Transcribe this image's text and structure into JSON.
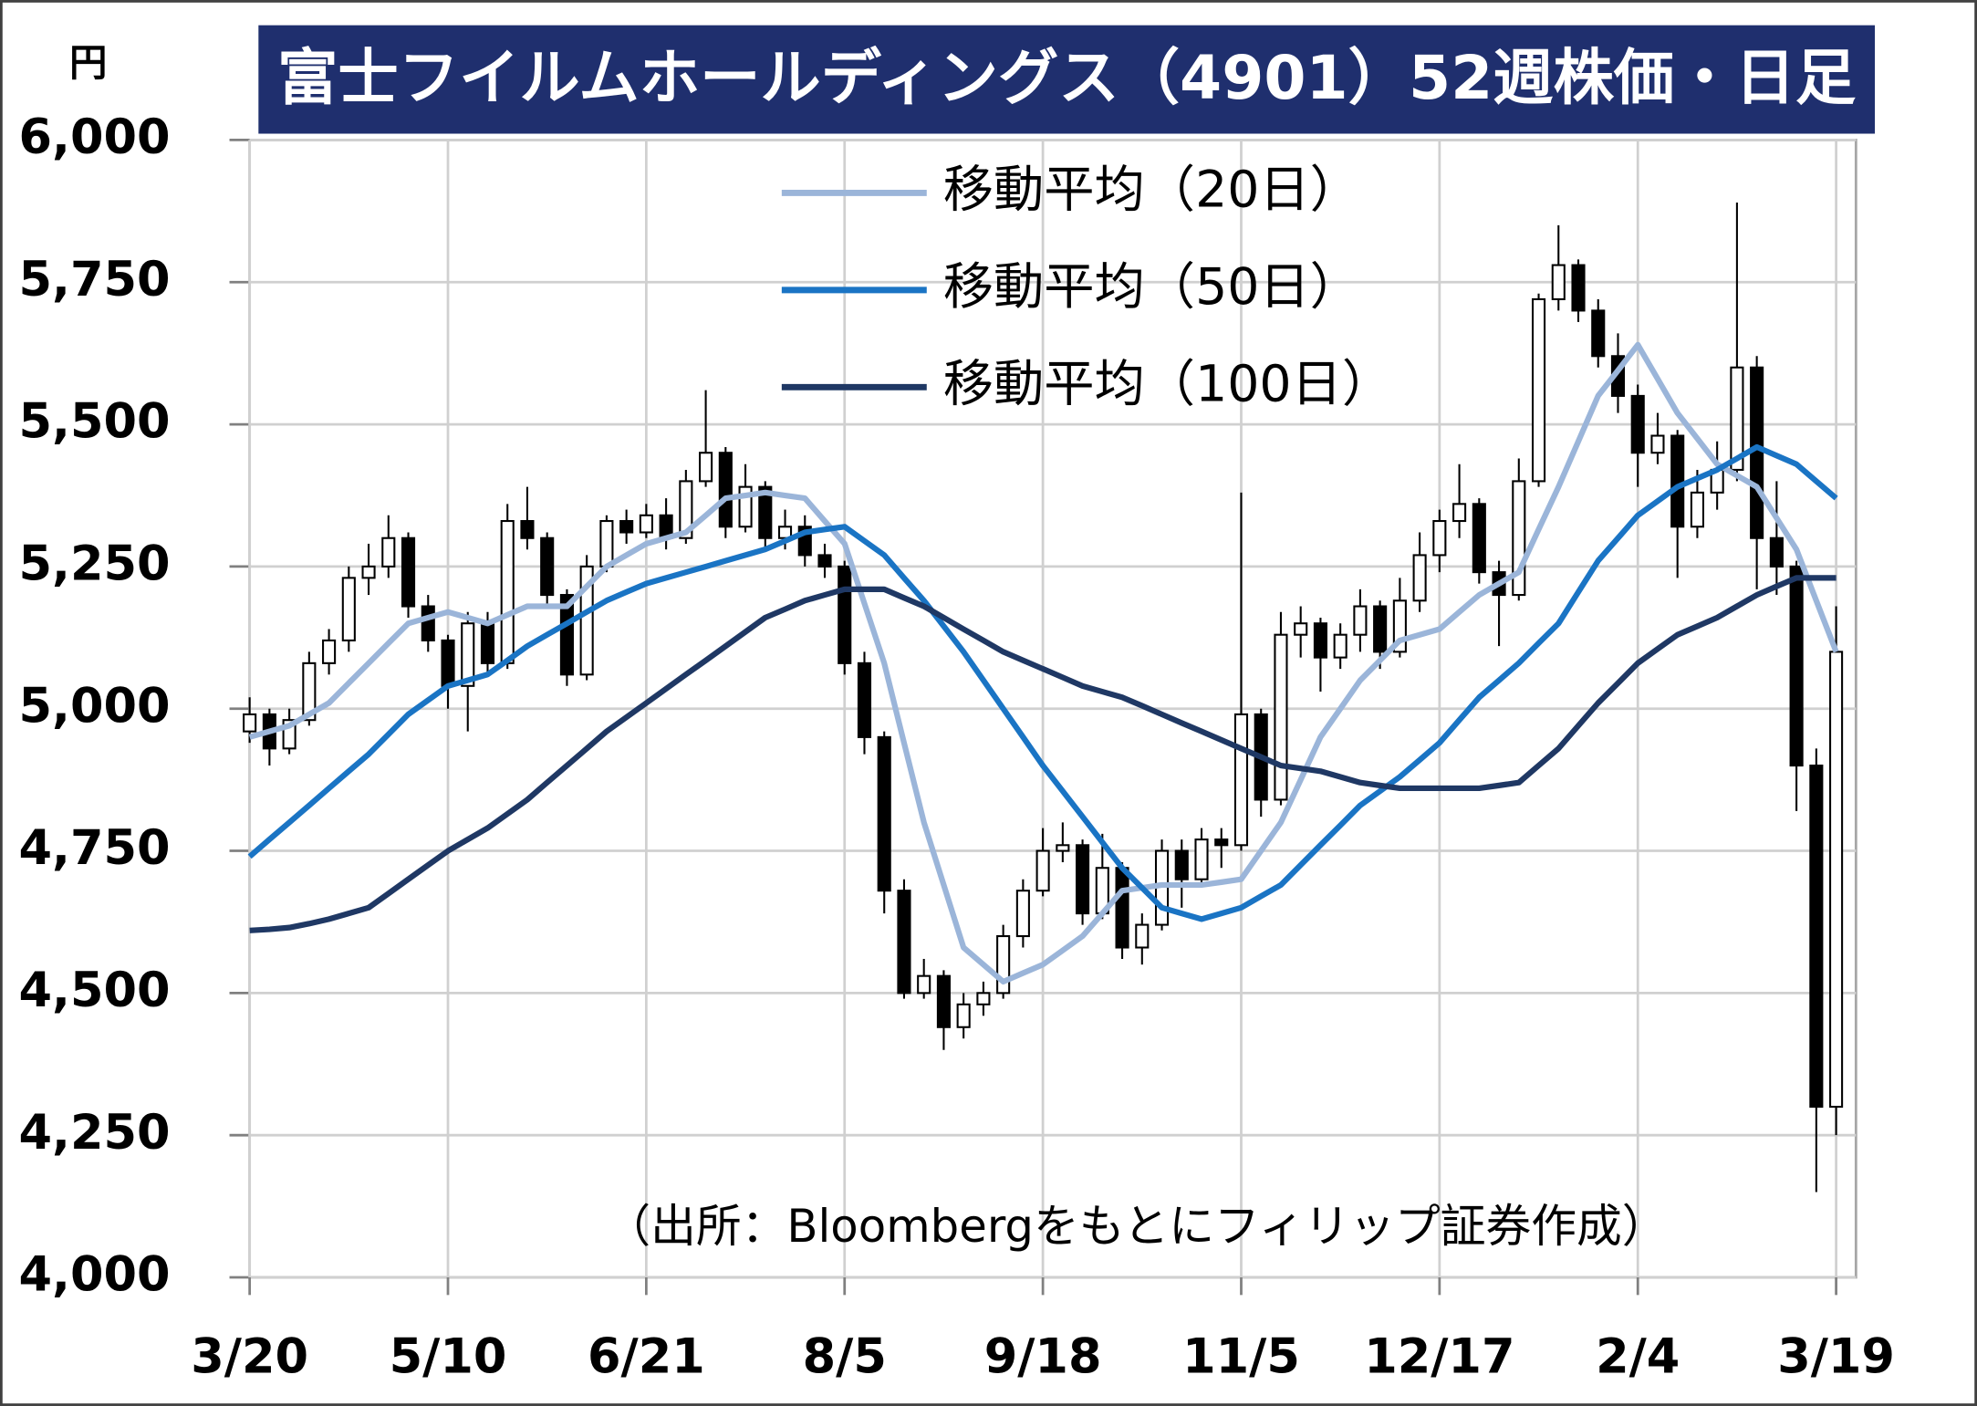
{
  "chart_data": {
    "type": "candlestick",
    "title": "富士フイルムホールディングス（4901）52週株価・日足",
    "y_unit": "円",
    "annotation": "（出所：Bloombergをもとにフィリップ証券作成）",
    "ylim": [
      4000,
      6000
    ],
    "yticks": [
      {
        "value": 4000,
        "label": "4,000"
      },
      {
        "value": 4250,
        "label": "4,250"
      },
      {
        "value": 4500,
        "label": "4,500"
      },
      {
        "value": 4750,
        "label": "4,750"
      },
      {
        "value": 5000,
        "label": "5,000"
      },
      {
        "value": 5250,
        "label": "5,250"
      },
      {
        "value": 5500,
        "label": "5,500"
      },
      {
        "value": 5750,
        "label": "5,750"
      },
      {
        "value": 6000,
        "label": "6,000"
      }
    ],
    "xlim": [
      0,
      81
    ],
    "xticks": [
      {
        "value": 0,
        "label": "3/20"
      },
      {
        "value": 10,
        "label": "5/10"
      },
      {
        "value": 20,
        "label": "6/21"
      },
      {
        "value": 30,
        "label": "8/5"
      },
      {
        "value": 40,
        "label": "9/18"
      },
      {
        "value": 50,
        "label": "11/5"
      },
      {
        "value": 60,
        "label": "12/17"
      },
      {
        "value": 70,
        "label": "2/4"
      },
      {
        "value": 80,
        "label": "3/19"
      }
    ],
    "grid": true,
    "up_color": "#ffffff",
    "down_color": "#000000",
    "ohlc": [
      [
        4960,
        5020,
        4940,
        4990
      ],
      [
        4990,
        5000,
        4900,
        4930
      ],
      [
        4930,
        5000,
        4920,
        4980
      ],
      [
        4980,
        5100,
        4970,
        5080
      ],
      [
        5080,
        5140,
        5060,
        5120
      ],
      [
        5120,
        5250,
        5100,
        5230
      ],
      [
        5230,
        5290,
        5200,
        5250
      ],
      [
        5250,
        5340,
        5230,
        5300
      ],
      [
        5300,
        5310,
        5160,
        5180
      ],
      [
        5180,
        5200,
        5100,
        5120
      ],
      [
        5120,
        5130,
        5000,
        5040
      ],
      [
        5040,
        5170,
        4960,
        5150
      ],
      [
        5150,
        5170,
        5060,
        5080
      ],
      [
        5080,
        5360,
        5070,
        5330
      ],
      [
        5330,
        5390,
        5280,
        5300
      ],
      [
        5300,
        5310,
        5180,
        5200
      ],
      [
        5200,
        5210,
        5040,
        5060
      ],
      [
        5060,
        5270,
        5050,
        5250
      ],
      [
        5250,
        5340,
        5240,
        5330
      ],
      [
        5330,
        5350,
        5290,
        5310
      ],
      [
        5310,
        5360,
        5300,
        5340
      ],
      [
        5340,
        5370,
        5280,
        5300
      ],
      [
        5300,
        5420,
        5290,
        5400
      ],
      [
        5400,
        5560,
        5390,
        5450
      ],
      [
        5450,
        5460,
        5300,
        5320
      ],
      [
        5320,
        5430,
        5310,
        5390
      ],
      [
        5390,
        5400,
        5280,
        5300
      ],
      [
        5300,
        5350,
        5280,
        5320
      ],
      [
        5320,
        5340,
        5250,
        5270
      ],
      [
        5270,
        5290,
        5230,
        5250
      ],
      [
        5250,
        5260,
        5060,
        5080
      ],
      [
        5080,
        5100,
        4920,
        4950
      ],
      [
        4950,
        4960,
        4640,
        4680
      ],
      [
        4680,
        4700,
        4490,
        4500
      ],
      [
        4500,
        4560,
        4490,
        4530
      ],
      [
        4530,
        4540,
        4400,
        4440
      ],
      [
        4440,
        4500,
        4420,
        4480
      ],
      [
        4480,
        4520,
        4460,
        4500
      ],
      [
        4500,
        4620,
        4490,
        4600
      ],
      [
        4600,
        4700,
        4580,
        4680
      ],
      [
        4680,
        4790,
        4670,
        4750
      ],
      [
        4750,
        4800,
        4730,
        4760
      ],
      [
        4760,
        4770,
        4620,
        4640
      ],
      [
        4640,
        4780,
        4630,
        4720
      ],
      [
        4720,
        4730,
        4560,
        4580
      ],
      [
        4580,
        4640,
        4550,
        4620
      ],
      [
        4620,
        4770,
        4610,
        4750
      ],
      [
        4750,
        4770,
        4650,
        4700
      ],
      [
        4700,
        4790,
        4690,
        4770
      ],
      [
        4770,
        4790,
        4720,
        4760
      ],
      [
        4760,
        5380,
        4750,
        4990
      ],
      [
        4990,
        5000,
        4810,
        4840
      ],
      [
        4840,
        5170,
        4830,
        5130
      ],
      [
        5130,
        5180,
        5090,
        5150
      ],
      [
        5150,
        5160,
        5030,
        5090
      ],
      [
        5090,
        5150,
        5070,
        5130
      ],
      [
        5130,
        5210,
        5100,
        5180
      ],
      [
        5180,
        5190,
        5070,
        5100
      ],
      [
        5100,
        5230,
        5090,
        5190
      ],
      [
        5190,
        5310,
        5170,
        5270
      ],
      [
        5270,
        5350,
        5240,
        5330
      ],
      [
        5330,
        5430,
        5300,
        5360
      ],
      [
        5360,
        5370,
        5220,
        5240
      ],
      [
        5240,
        5260,
        5110,
        5200
      ],
      [
        5200,
        5440,
        5190,
        5400
      ],
      [
        5400,
        5730,
        5390,
        5720
      ],
      [
        5720,
        5850,
        5700,
        5780
      ],
      [
        5780,
        5790,
        5680,
        5700
      ],
      [
        5700,
        5720,
        5600,
        5620
      ],
      [
        5620,
        5660,
        5520,
        5550
      ],
      [
        5550,
        5570,
        5390,
        5450
      ],
      [
        5450,
        5520,
        5430,
        5480
      ],
      [
        5480,
        5490,
        5230,
        5320
      ],
      [
        5320,
        5420,
        5300,
        5380
      ],
      [
        5380,
        5470,
        5350,
        5420
      ],
      [
        5420,
        5890,
        5400,
        5600
      ],
      [
        5600,
        5620,
        5210,
        5300
      ],
      [
        5300,
        5400,
        5200,
        5250
      ],
      [
        5250,
        5260,
        4820,
        4900
      ],
      [
        4900,
        4930,
        4150,
        4300
      ],
      [
        4300,
        5180,
        4250,
        5100
      ]
    ],
    "series": [
      {
        "name": "移動平均（20日）",
        "color": "#9bb5d9",
        "values": [
          4950,
          4960,
          4970,
          4990,
          5010,
          5045,
          5080,
          5115,
          5150,
          5160,
          5170,
          5160,
          5150,
          5165,
          5180,
          5180,
          5180,
          5215,
          5250,
          5270,
          5290,
          5300,
          5310,
          5340,
          5370,
          5375,
          5380,
          5375,
          5370,
          5330,
          5290,
          5185,
          5080,
          4940,
          4800,
          4690,
          4580,
          4550,
          4520,
          4535,
          4550,
          4575,
          4600,
          4640,
          4680,
          4685,
          4690,
          4690,
          4690,
          4695,
          4700,
          4750,
          4800,
          4875,
          4950,
          5000,
          5050,
          5085,
          5120,
          5130,
          5140,
          5170,
          5200,
          5220,
          5240,
          5315,
          5390,
          5470,
          5550,
          5595,
          5640,
          5580,
          5520,
          5475,
          5430,
          5410,
          5390,
          5335,
          5280,
          5190,
          5100
        ]
      },
      {
        "name": "移動平均（50日）",
        "color": "#1a74c4",
        "values": [
          4740,
          4770,
          4800,
          4830,
          4860,
          4890,
          4920,
          4955,
          4990,
          5015,
          5040,
          5050,
          5060,
          5085,
          5110,
          5130,
          5150,
          5170,
          5190,
          5205,
          5220,
          5230,
          5240,
          5250,
          5260,
          5270,
          5280,
          5295,
          5310,
          5315,
          5320,
          5295,
          5270,
          5230,
          5190,
          5145,
          5100,
          5050,
          5000,
          4950,
          4900,
          4855,
          4810,
          4765,
          4720,
          4685,
          4650,
          4640,
          4630,
          4640,
          4650,
          4670,
          4690,
          4725,
          4760,
          4795,
          4830,
          4855,
          4880,
          4910,
          4940,
          4980,
          5020,
          5050,
          5080,
          5115,
          5150,
          5205,
          5260,
          5300,
          5340,
          5365,
          5390,
          5405,
          5420,
          5440,
          5460,
          5445,
          5430,
          5400,
          5370
        ]
      },
      {
        "name": "移動平均（100日）",
        "color": "#1f3864",
        "values": [
          4610,
          4612,
          4615,
          4622,
          4630,
          4640,
          4650,
          4675,
          4700,
          4725,
          4750,
          4770,
          4790,
          4815,
          4840,
          4870,
          4900,
          4930,
          4960,
          4985,
          5010,
          5035,
          5060,
          5085,
          5110,
          5135,
          5160,
          5175,
          5190,
          5200,
          5210,
          5210,
          5210,
          5195,
          5180,
          5160,
          5140,
          5120,
          5100,
          5085,
          5070,
          5055,
          5040,
          5030,
          5020,
          5005,
          4990,
          4975,
          4960,
          4945,
          4930,
          4915,
          4900,
          4895,
          4890,
          4880,
          4870,
          4865,
          4860,
          4860,
          4860,
          4860,
          4860,
          4865,
          4870,
          4900,
          4930,
          4970,
          5010,
          5045,
          5080,
          5105,
          5130,
          5145,
          5160,
          5180,
          5200,
          5215,
          5230,
          5230,
          5230
        ]
      }
    ]
  }
}
